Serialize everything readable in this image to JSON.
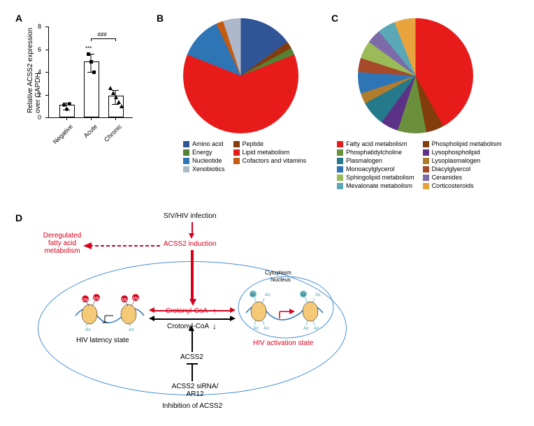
{
  "panelA": {
    "label": "A",
    "axis_title_y": "Relative ACSS2 expression\nover GAPDH",
    "ylim": [
      0,
      8
    ],
    "ytick_step": 2,
    "categories": [
      "Negative",
      "Acute",
      "Chronic"
    ],
    "bars": [
      {
        "mean": 1.0,
        "err": 0.3,
        "points": [
          1.1,
          0.7,
          1.2
        ],
        "marker": "circle"
      },
      {
        "mean": 4.8,
        "err": 0.8,
        "points": [
          5.6,
          4.9,
          4.0
        ],
        "marker": "square"
      },
      {
        "mean": 1.8,
        "err": 0.6,
        "points": [
          2.6,
          2.2,
          1.8,
          1.4,
          1.0
        ],
        "marker": "triangle"
      }
    ],
    "sig1": {
      "text": "***",
      "x_idx": 1
    },
    "sig2": {
      "text": "###",
      "from_idx": 1,
      "to_idx": 2
    }
  },
  "panelB": {
    "label": "B",
    "slices": [
      {
        "name": "Amino acid",
        "color": "#2f5597",
        "value": 15
      },
      {
        "name": "Peptide",
        "color": "#843c0c",
        "value": 2
      },
      {
        "name": "Energy",
        "color": "#548235",
        "value": 2
      },
      {
        "name": "Lipid metabolism",
        "color": "#e81b1b",
        "value": 62
      },
      {
        "name": "Nucleotide",
        "color": "#2e75b6",
        "value": 12
      },
      {
        "name": "Cofactors and vitamins",
        "color": "#c55a11",
        "value": 2
      },
      {
        "name": "Xenobiotics",
        "color": "#adb9ca",
        "value": 5
      }
    ],
    "legend_cols": [
      [
        "Amino acid",
        "Energy",
        "Nucleotide",
        "Xenobiotics"
      ],
      [
        "Peptide",
        "Lipid metabolism",
        "Cofactors and vitamins"
      ]
    ]
  },
  "panelC": {
    "label": "C",
    "slices": [
      {
        "name": "Fatty acid metabolism",
        "color": "#e81b1b",
        "value": 42
      },
      {
        "name": "Phospholipid metabolism",
        "color": "#833c0c",
        "value": 5
      },
      {
        "name": "Phosphatidylcholine",
        "color": "#6a8f3d",
        "value": 8
      },
      {
        "name": "Lysophospholipid",
        "color": "#5b3286",
        "value": 5
      },
      {
        "name": "Plasmalogen",
        "color": "#247a8a",
        "value": 7
      },
      {
        "name": "Lysoplasmalogen",
        "color": "#b07d2e",
        "value": 3
      },
      {
        "name": "Monoacylglycerol",
        "color": "#2e75b6",
        "value": 6
      },
      {
        "name": "Diacylglyercol",
        "color": "#a64a2a",
        "value": 4
      },
      {
        "name": "Sphingolipid metabolism",
        "color": "#9bbb59",
        "value": 5
      },
      {
        "name": "Ceramides",
        "color": "#7d6aa8",
        "value": 4
      },
      {
        "name": "Mevalonate metabolism",
        "color": "#5aa7b5",
        "value": 5
      },
      {
        "name": "Corticosteroids",
        "color": "#e8a33d",
        "value": 6
      }
    ],
    "legend_cols": [
      [
        "Fatty acid metabolism",
        "Phosphatidylcholine",
        "Plasmalogen",
        "Monoacylglycerol",
        "Sphingolipid metabolism",
        "Mevalonate metabolism"
      ],
      [
        "Phospholipid metabolism",
        "Lysophospholipid",
        "Lysoplasmalogen",
        "Diacylglyercol",
        "Ceramides",
        "Corticosteroids"
      ]
    ]
  },
  "panelD": {
    "label": "D",
    "texts": {
      "top": "SIV/HIV infection",
      "acss2_induction": "ACSS2 induction",
      "dereg": "Deregulated\nfatty acid\nmetabolism",
      "cyto": "Cytoplasm",
      "nucleus": "Nucleus",
      "crotonyl_up": "Crotonyl-CoA",
      "crotonyl_down": "Crotonyl-CoA",
      "latency": "HIV latency state",
      "activation": "HIV activation state",
      "acss2": "ACSS2",
      "inhib": "ACSS2 siRNA/\nAR12",
      "inhib2": "Inhibition of ACSS2"
    }
  }
}
